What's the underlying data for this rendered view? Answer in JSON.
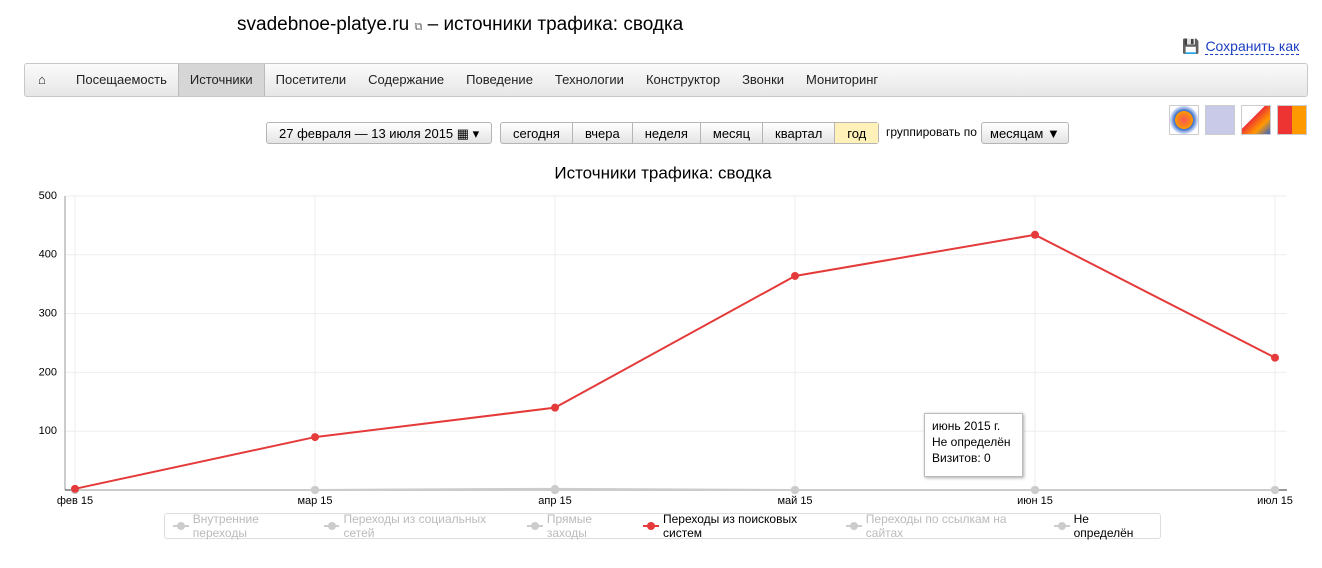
{
  "header": {
    "site": "svadebnoe-platye.ru",
    "title": "– источники трафика: сводка",
    "save": "Сохранить как"
  },
  "nav": [
    "Посещаемость",
    "Источники",
    "Посетители",
    "Содержание",
    "Поведение",
    "Технологии",
    "Конструктор",
    "Звонки",
    "Мониторинг"
  ],
  "toolbar": {
    "date_range": "27 февраля — 13 июля 2015",
    "periods": [
      "сегодня",
      "вчера",
      "неделя",
      "месяц",
      "квартал",
      "год"
    ],
    "group_label": "группировать по",
    "group_value": "месяцам"
  },
  "chart_data": {
    "type": "line",
    "title": "Источники трафика: сводка",
    "categories": [
      "фев 15",
      "мар 15",
      "апр 15",
      "май 15",
      "июн 15",
      "июл 15"
    ],
    "series": [
      {
        "name": "Внутренние переходы",
        "color": "#cccccc",
        "enabled": false,
        "values": [
          0,
          0,
          0,
          0,
          0,
          0
        ]
      },
      {
        "name": "Переходы из социальных сетей",
        "color": "#cccccc",
        "enabled": false,
        "values": [
          0,
          0,
          0,
          0,
          0,
          0
        ]
      },
      {
        "name": "Прямые заходы",
        "color": "#cccccc",
        "enabled": false,
        "values": [
          0,
          0,
          2,
          0,
          0,
          0
        ]
      },
      {
        "name": "Переходы из поисковых систем",
        "color": "#e53a3a",
        "enabled": true,
        "values": [
          2,
          90,
          140,
          364,
          434,
          225
        ]
      },
      {
        "name": "Переходы по ссылкам на сайтах",
        "color": "#cccccc",
        "enabled": false,
        "values": [
          0,
          0,
          0,
          0,
          0,
          0
        ]
      },
      {
        "name": "Не определён",
        "color": "#cccccc",
        "enabled": true,
        "values": [
          0,
          0,
          0,
          0,
          0,
          0
        ]
      }
    ],
    "ylim": [
      0,
      500
    ],
    "yticks": [
      100,
      200,
      300,
      400,
      500
    ],
    "grid": true,
    "tooltip": {
      "date": "июнь 2015 г.",
      "series": "Не определён",
      "text": "Визитов: 0"
    }
  }
}
